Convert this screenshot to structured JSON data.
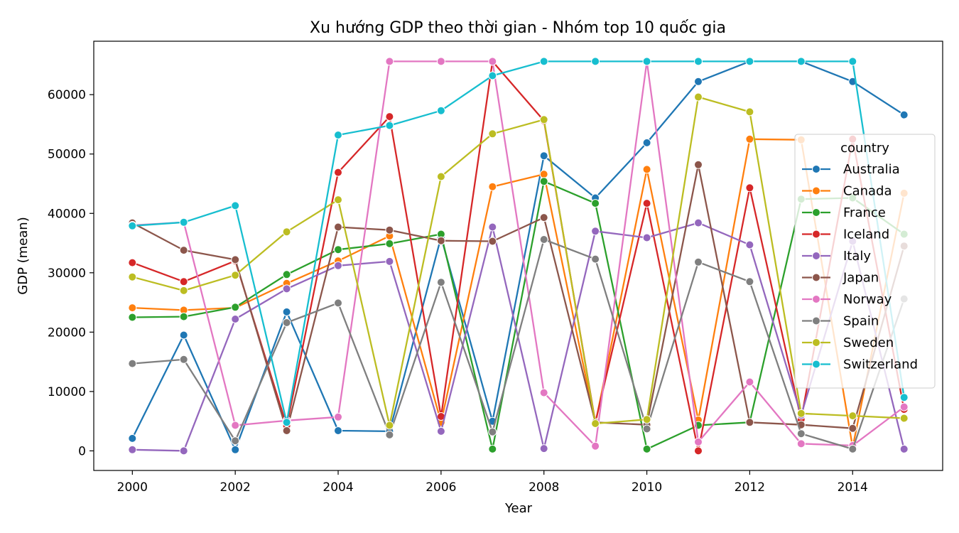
{
  "chart_data": {
    "type": "line",
    "title": "Xu hướng GDP theo thời gian - Nhóm top 10 quốc gia",
    "xlabel": "Year",
    "ylabel": "GDP (mean)",
    "x": [
      2000,
      2001,
      2002,
      2003,
      2004,
      2005,
      2006,
      2007,
      2008,
      2009,
      2010,
      2011,
      2012,
      2013,
      2014,
      2015
    ],
    "xlim": [
      1999.25,
      2015.75
    ],
    "ylim": [
      -3300,
      69000
    ],
    "xticks": [
      2000,
      2002,
      2004,
      2006,
      2008,
      2010,
      2012,
      2014
    ],
    "yticks": [
      0,
      10000,
      20000,
      30000,
      40000,
      50000,
      60000
    ],
    "grid": false,
    "legend": {
      "title": "country",
      "placement": "center-right"
    },
    "series": [
      {
        "name": "Australia",
        "color": "#1f77b4",
        "values": [
          2100,
          19500,
          200,
          23400,
          3400,
          3300,
          36000,
          5000,
          49700,
          42600,
          51900,
          62200,
          65600,
          65600,
          62200,
          56600
        ]
      },
      {
        "name": "Canada",
        "color": "#ff7f0e",
        "values": [
          24100,
          23700,
          24100,
          28200,
          32000,
          36200,
          4800,
          44500,
          46600,
          4600,
          47400,
          5200,
          52500,
          52400,
          600,
          43400
        ]
      },
      {
        "name": "France",
        "color": "#2ca02c",
        "values": [
          22500,
          22600,
          24200,
          29700,
          33900,
          34900,
          36500,
          300,
          45400,
          41700,
          300,
          4300,
          4800,
          42400,
          42600,
          36500
        ]
      },
      {
        "name": "Iceland",
        "color": "#d62728",
        "values": [
          31700,
          28500,
          32000,
          4200,
          46900,
          56300,
          5800,
          65600,
          55600,
          4800,
          41700,
          0,
          44300,
          5300,
          52500,
          7000
        ]
      },
      {
        "name": "Italy",
        "color": "#9467bd",
        "values": [
          200,
          0,
          22200,
          27300,
          31200,
          31900,
          3300,
          37700,
          400,
          37000,
          35900,
          38400,
          34700,
          6000,
          35300,
          300
        ]
      },
      {
        "name": "Japan",
        "color": "#8c564b",
        "values": [
          38400,
          33800,
          32200,
          3400,
          37700,
          37200,
          35400,
          35300,
          39300,
          4800,
          4400,
          48200,
          4800,
          4400,
          3800,
          34500
        ]
      },
      {
        "name": "Norway",
        "color": "#e377c2",
        "values": [
          38000,
          38500,
          4300,
          5100,
          5700,
          65600,
          65600,
          65600,
          9800,
          800,
          65600,
          1500,
          11600,
          1200,
          900,
          7400
        ]
      },
      {
        "name": "Spain",
        "color": "#7f7f7f",
        "values": [
          14700,
          15400,
          1700,
          21600,
          24900,
          2700,
          28400,
          3200,
          35600,
          32300,
          3700,
          31800,
          28500,
          2900,
          300,
          25600
        ]
      },
      {
        "name": "Sweden",
        "color": "#bcbd22",
        "values": [
          29300,
          27000,
          29600,
          36900,
          42300,
          4300,
          46200,
          53400,
          55800,
          4600,
          5300,
          59600,
          57100,
          6300,
          5900,
          5500
        ]
      },
      {
        "name": "Switzerland",
        "color": "#17becf",
        "values": [
          37900,
          38500,
          41300,
          4800,
          53200,
          54800,
          57300,
          63200,
          65600,
          65600,
          65600,
          65600,
          65600,
          65600,
          65600,
          9000
        ]
      }
    ]
  }
}
